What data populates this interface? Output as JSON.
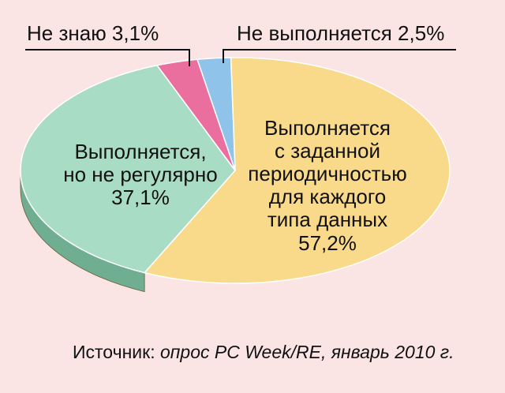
{
  "chart_data": {
    "type": "pie",
    "title": "",
    "slices": [
      {
        "label_lines": [
          "Выполняется",
          "с заданной",
          "периодичностью",
          "для каждого",
          "типа данных"
        ],
        "value": 57.2,
        "value_text": "57,2%",
        "color": "#f9d98a",
        "side_color": "#c8a24a"
      },
      {
        "label_lines": [
          "Выполняется,",
          "но не регулярно"
        ],
        "value": 37.1,
        "value_text": "37,1%",
        "color": "#a9dcc4",
        "side_color": "#6fae90"
      },
      {
        "label_lines": [
          "Не знаю"
        ],
        "value": 3.1,
        "value_text": "3,1%",
        "color": "#ea6f9f",
        "side_color": "#b54a75"
      },
      {
        "label_lines": [
          "Не выполняется"
        ],
        "value": 2.5,
        "value_text": "2,5%",
        "color": "#8fc3ea",
        "side_color": "#5b93bd"
      }
    ]
  },
  "labels": {
    "main_lines": [
      "Выполняется",
      "с заданной",
      "периодичностью",
      "для каждого",
      "типа данных",
      "57,2%"
    ],
    "irregular_lines": [
      "Выполняется,",
      "но не регулярно",
      "37,1%"
    ],
    "dont_know": "Не знаю 3,1%",
    "not_done": "Не выполняется 2,5%"
  },
  "source": {
    "prefix": "Источник: ",
    "italic": "опрос PC Week/RE, январь 2010 г."
  }
}
